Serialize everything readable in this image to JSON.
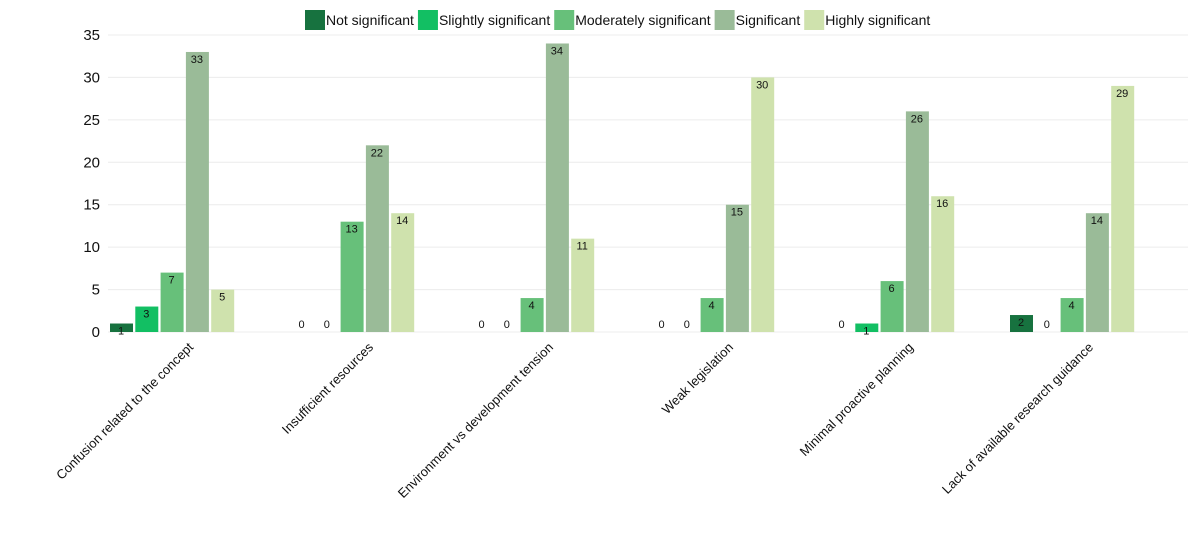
{
  "chart_data": {
    "type": "bar",
    "title": "",
    "xlabel": "",
    "ylabel": "",
    "ylim": [
      0,
      35
    ],
    "yticks": [
      0,
      5,
      10,
      15,
      20,
      25,
      30,
      35
    ],
    "grid": true,
    "legend_position": "top",
    "categories": [
      "Confusion related to the concept",
      "Insufficient resources",
      "Environment vs development tension",
      "Weak legislation",
      "Minimal proactive planning",
      "Lack of available research guidance"
    ],
    "series": [
      {
        "name": "Not significant",
        "color": "#17723f",
        "values": [
          1,
          0,
          0,
          0,
          0,
          2
        ]
      },
      {
        "name": "Slightly significant",
        "color": "#12bf63",
        "values": [
          3,
          0,
          0,
          0,
          1,
          0
        ]
      },
      {
        "name": "Moderately significant",
        "color": "#67c07a",
        "values": [
          7,
          13,
          4,
          4,
          6,
          4
        ]
      },
      {
        "name": "Significant",
        "color": "#9abb98",
        "values": [
          33,
          22,
          34,
          15,
          26,
          14
        ]
      },
      {
        "name": "Highly significant",
        "color": "#cfe2ad",
        "values": [
          5,
          14,
          11,
          30,
          16,
          29
        ]
      }
    ]
  }
}
